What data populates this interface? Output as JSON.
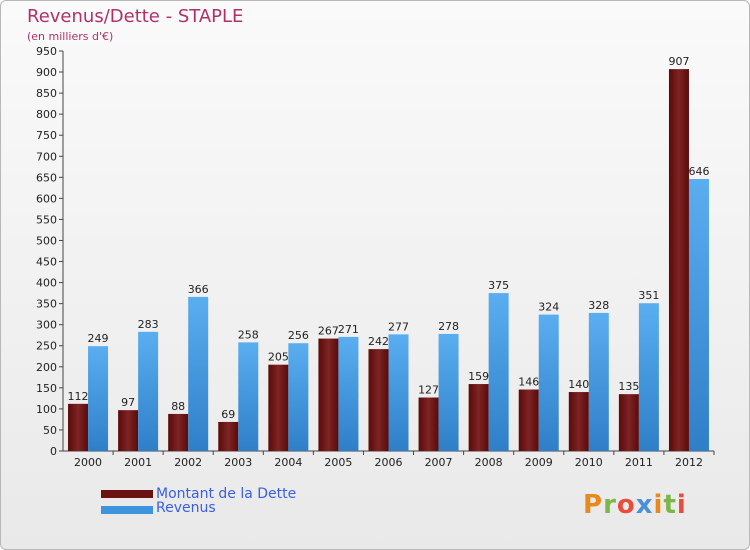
{
  "chart_data": {
    "type": "bar",
    "title": "Revenus/Dette - STAPLE",
    "subtitle": "(en milliers d'€)",
    "categories": [
      "2000",
      "2001",
      "2002",
      "2003",
      "2004",
      "2005",
      "2006",
      "2007",
      "2008",
      "2009",
      "2010",
      "2011",
      "2012"
    ],
    "series": [
      {
        "name": "Montant de la Dette",
        "color": "#6b1212",
        "values": [
          112,
          97,
          88,
          69,
          205,
          267,
          242,
          127,
          159,
          146,
          140,
          135,
          907
        ]
      },
      {
        "name": "Revenus",
        "color": "#3d94dd",
        "values": [
          249,
          283,
          366,
          258,
          256,
          271,
          277,
          278,
          375,
          324,
          328,
          351,
          646
        ]
      }
    ],
    "yticks": [
      0,
      50,
      100,
      150,
      200,
      250,
      300,
      350,
      400,
      450,
      500,
      550,
      600,
      650,
      700,
      750,
      800,
      850,
      900,
      950
    ],
    "ylim": [
      0,
      950
    ],
    "grid": false,
    "legend_position": "bottom-left"
  },
  "brand": {
    "text": "Proxiti",
    "letters": [
      "P",
      "r",
      "o",
      "x",
      "i",
      "t",
      "i"
    ],
    "colors": [
      "#e8891c",
      "#7ab648",
      "#e84c3d",
      "#4a90d9",
      "#e8891c",
      "#7ab648",
      "#e84c3d"
    ]
  }
}
